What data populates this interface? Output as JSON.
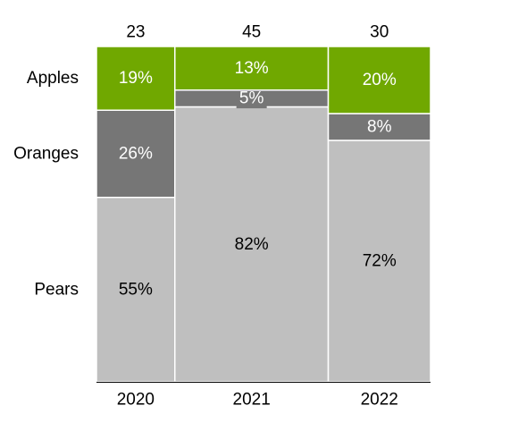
{
  "chart_data": {
    "type": "marimekko",
    "categories": [
      "2020",
      "2021",
      "2022"
    ],
    "totals": [
      23,
      45,
      30
    ],
    "series": [
      {
        "name": "Pears",
        "values": [
          55,
          82,
          72
        ],
        "labels": [
          "55%",
          "82%",
          "72%"
        ],
        "color": "#bfbfbf",
        "label_color": "#000000"
      },
      {
        "name": "Oranges",
        "values": [
          26,
          5,
          8
        ],
        "labels": [
          "26%",
          "5%",
          "8%"
        ],
        "color": "#767676",
        "label_color": "#ffffff"
      },
      {
        "name": "Apples",
        "values": [
          19,
          13,
          20
        ],
        "labels": [
          "19%",
          "13%",
          "20%"
        ],
        "color": "#70a800",
        "label_color": "#ffffff"
      }
    ],
    "ylim": [
      0,
      100
    ],
    "legend_position": "left",
    "grid": false
  }
}
